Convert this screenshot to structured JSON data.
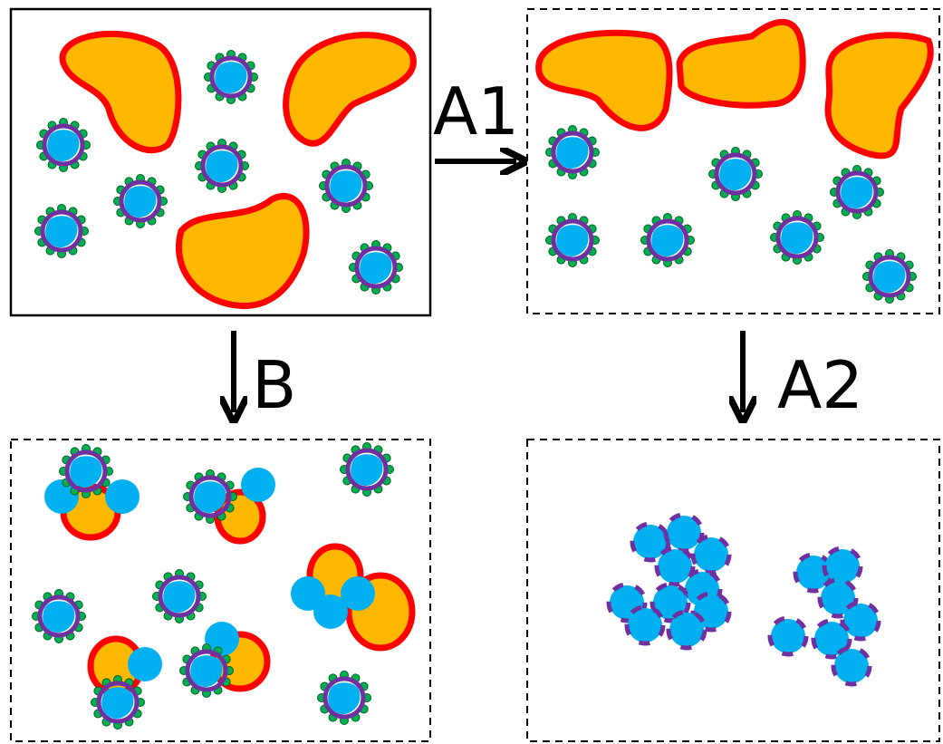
{
  "steps": {
    "a1": "A1",
    "b": "B",
    "a2": "A2"
  }
}
